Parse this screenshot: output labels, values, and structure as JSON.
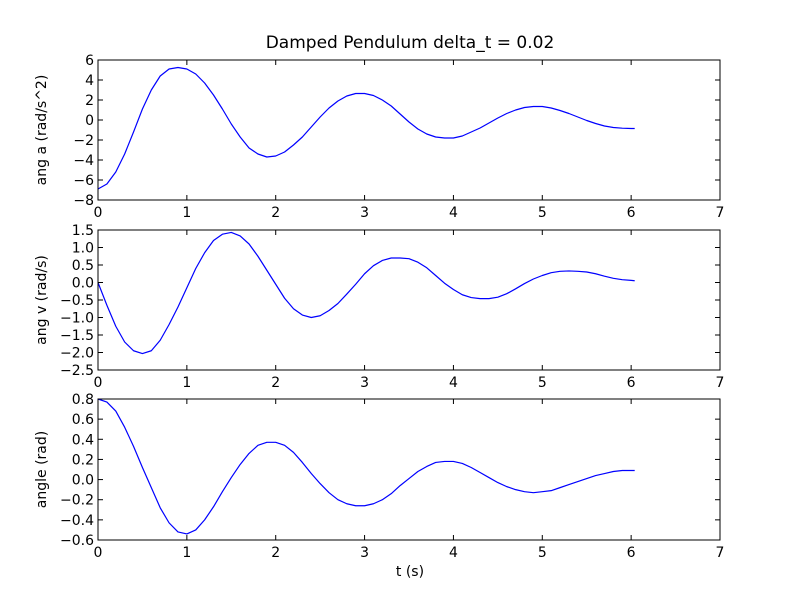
{
  "chart_data": {
    "type": "line",
    "title": "Damped Pendulum  delta_t = 0.02",
    "xlabel": "t (s)",
    "line_color": "#0000ff",
    "subplots": [
      {
        "ylabel": "ang a (rad/s^2)",
        "xlim": [
          0,
          7
        ],
        "ylim": [
          -8,
          6
        ],
        "xticks": [
          0,
          1,
          2,
          3,
          4,
          5,
          6,
          7
        ],
        "yticks": [
          -8,
          -6,
          -4,
          -2,
          0,
          2,
          4,
          6
        ],
        "x": [
          0.0,
          0.1,
          0.2,
          0.3,
          0.4,
          0.5,
          0.6,
          0.7,
          0.8,
          0.9,
          1.0,
          1.1,
          1.2,
          1.3,
          1.4,
          1.5,
          1.6,
          1.7,
          1.8,
          1.9,
          2.0,
          2.1,
          2.2,
          2.3,
          2.4,
          2.5,
          2.6,
          2.7,
          2.8,
          2.9,
          3.0,
          3.1,
          3.2,
          3.3,
          3.4,
          3.5,
          3.6,
          3.7,
          3.8,
          3.9,
          4.0,
          4.1,
          4.2,
          4.3,
          4.4,
          4.5,
          4.6,
          4.7,
          4.8,
          4.9,
          5.0,
          5.1,
          5.2,
          5.3,
          5.4,
          5.5,
          5.6,
          5.7,
          5.8,
          5.9,
          6.0,
          6.04
        ],
        "y": [
          -6.9,
          -6.4,
          -5.2,
          -3.4,
          -1.2,
          1.1,
          3.0,
          4.4,
          5.1,
          5.25,
          5.1,
          4.6,
          3.7,
          2.5,
          1.1,
          -0.4,
          -1.7,
          -2.8,
          -3.4,
          -3.7,
          -3.6,
          -3.2,
          -2.5,
          -1.7,
          -0.7,
          0.3,
          1.2,
          1.9,
          2.4,
          2.65,
          2.65,
          2.45,
          2.0,
          1.4,
          0.6,
          -0.2,
          -0.9,
          -1.4,
          -1.7,
          -1.8,
          -1.8,
          -1.6,
          -1.2,
          -0.8,
          -0.3,
          0.2,
          0.65,
          1.0,
          1.25,
          1.35,
          1.35,
          1.2,
          0.95,
          0.65,
          0.3,
          -0.05,
          -0.35,
          -0.6,
          -0.75,
          -0.82,
          -0.85,
          -0.85
        ]
      },
      {
        "ylabel": "ang v (rad/s)",
        "xlim": [
          0,
          7
        ],
        "ylim": [
          -2.5,
          1.5
        ],
        "xticks": [
          0,
          1,
          2,
          3,
          4,
          5,
          6,
          7
        ],
        "yticks": [
          -2.5,
          -2.0,
          -1.5,
          -1.0,
          -0.5,
          0.0,
          0.5,
          1.0,
          1.5
        ],
        "x": [
          0.0,
          0.1,
          0.2,
          0.3,
          0.4,
          0.5,
          0.6,
          0.7,
          0.8,
          0.9,
          1.0,
          1.1,
          1.2,
          1.3,
          1.4,
          1.5,
          1.6,
          1.7,
          1.8,
          1.9,
          2.0,
          2.1,
          2.2,
          2.3,
          2.4,
          2.5,
          2.6,
          2.7,
          2.8,
          2.9,
          3.0,
          3.1,
          3.2,
          3.3,
          3.4,
          3.5,
          3.6,
          3.7,
          3.8,
          3.9,
          4.0,
          4.1,
          4.2,
          4.3,
          4.4,
          4.5,
          4.6,
          4.7,
          4.8,
          4.9,
          5.0,
          5.1,
          5.2,
          5.3,
          5.4,
          5.5,
          5.6,
          5.7,
          5.8,
          5.9,
          6.0,
          6.04
        ],
        "y": [
          0.0,
          -0.65,
          -1.25,
          -1.7,
          -1.95,
          -2.03,
          -1.95,
          -1.65,
          -1.2,
          -0.7,
          -0.15,
          0.4,
          0.85,
          1.2,
          1.38,
          1.43,
          1.33,
          1.1,
          0.75,
          0.35,
          -0.05,
          -0.45,
          -0.75,
          -0.93,
          -1.0,
          -0.95,
          -0.8,
          -0.6,
          -0.33,
          -0.05,
          0.25,
          0.48,
          0.63,
          0.7,
          0.7,
          0.68,
          0.58,
          0.42,
          0.2,
          -0.02,
          -0.2,
          -0.35,
          -0.43,
          -0.46,
          -0.46,
          -0.42,
          -0.32,
          -0.18,
          -0.03,
          0.1,
          0.2,
          0.28,
          0.32,
          0.33,
          0.32,
          0.3,
          0.25,
          0.18,
          0.12,
          0.08,
          0.06,
          0.05
        ]
      },
      {
        "ylabel": "angle (rad)",
        "xlim": [
          0,
          7
        ],
        "ylim": [
          -0.6,
          0.8
        ],
        "xticks": [
          0,
          1,
          2,
          3,
          4,
          5,
          6,
          7
        ],
        "yticks": [
          -0.6,
          -0.4,
          -0.2,
          0.0,
          0.2,
          0.4,
          0.6,
          0.8
        ],
        "x": [
          0.0,
          0.1,
          0.2,
          0.3,
          0.4,
          0.5,
          0.6,
          0.7,
          0.8,
          0.9,
          1.0,
          1.1,
          1.2,
          1.3,
          1.4,
          1.5,
          1.6,
          1.7,
          1.8,
          1.9,
          2.0,
          2.1,
          2.2,
          2.3,
          2.4,
          2.5,
          2.6,
          2.7,
          2.8,
          2.9,
          3.0,
          3.1,
          3.2,
          3.3,
          3.4,
          3.5,
          3.6,
          3.7,
          3.8,
          3.9,
          4.0,
          4.1,
          4.2,
          4.3,
          4.4,
          4.5,
          4.6,
          4.7,
          4.8,
          4.9,
          5.0,
          5.1,
          5.2,
          5.3,
          5.4,
          5.5,
          5.6,
          5.7,
          5.8,
          5.9,
          6.0,
          6.04
        ],
        "y": [
          0.8,
          0.77,
          0.68,
          0.52,
          0.33,
          0.12,
          -0.08,
          -0.28,
          -0.43,
          -0.52,
          -0.54,
          -0.5,
          -0.4,
          -0.27,
          -0.12,
          0.02,
          0.15,
          0.26,
          0.34,
          0.37,
          0.37,
          0.34,
          0.27,
          0.17,
          0.06,
          -0.04,
          -0.13,
          -0.2,
          -0.24,
          -0.26,
          -0.26,
          -0.24,
          -0.2,
          -0.14,
          -0.06,
          0.01,
          0.08,
          0.13,
          0.17,
          0.18,
          0.18,
          0.16,
          0.12,
          0.07,
          0.02,
          -0.03,
          -0.07,
          -0.1,
          -0.12,
          -0.13,
          -0.12,
          -0.11,
          -0.08,
          -0.05,
          -0.02,
          0.01,
          0.04,
          0.06,
          0.08,
          0.09,
          0.09,
          0.09
        ]
      }
    ]
  }
}
